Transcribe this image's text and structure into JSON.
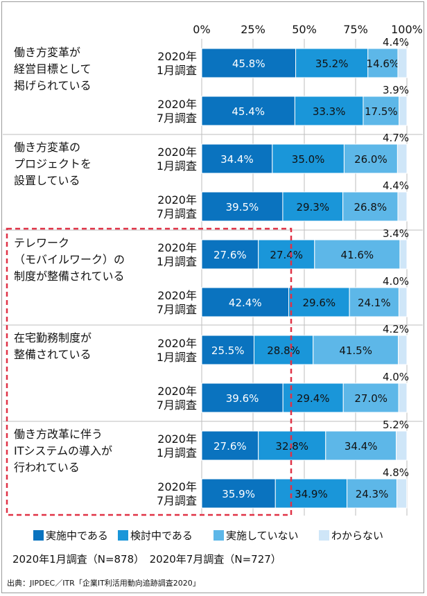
{
  "chart_data": {
    "type": "bar",
    "orientation": "horizontal",
    "stacked": "100%",
    "xlim": [
      0,
      100
    ],
    "x_ticks": [
      "0%",
      "25%",
      "50%",
      "75%",
      "100%"
    ],
    "grid": true,
    "legend_position": "bottom",
    "series": [
      {
        "name": "実施中である",
        "color": "#0a73bf",
        "label_color": "#ffffff"
      },
      {
        "name": "検討中である",
        "color": "#1a96d9",
        "label_color": "#111111"
      },
      {
        "name": "実施していない",
        "color": "#5db7e8",
        "label_color": "#111111"
      },
      {
        "name": "わからない",
        "color": "#cfe6f8",
        "label_color": "#111111"
      }
    ],
    "groups": [
      {
        "label_lines": [
          "働き方変革が",
          "経営目標として",
          "掲げられている"
        ],
        "rows": [
          {
            "survey": [
              "2020年",
              "1月調査"
            ],
            "values": [
              45.8,
              35.2,
              14.6,
              4.4
            ]
          },
          {
            "survey": [
              "2020年",
              "7月調査"
            ],
            "values": [
              45.4,
              33.3,
              17.5,
              3.9
            ]
          }
        ]
      },
      {
        "label_lines": [
          "働き方変革の",
          "プロジェクトを",
          "設置している"
        ],
        "rows": [
          {
            "survey": [
              "2020年",
              "1月調査"
            ],
            "values": [
              34.4,
              35.0,
              26.0,
              4.7
            ]
          },
          {
            "survey": [
              "2020年",
              "7月調査"
            ],
            "values": [
              39.5,
              29.3,
              26.8,
              4.4
            ]
          }
        ]
      },
      {
        "label_lines": [
          "テレワーク",
          "（モバイルワーク）の",
          "制度が整備されている"
        ],
        "rows": [
          {
            "survey": [
              "2020年",
              "1月調査"
            ],
            "values": [
              27.6,
              27.4,
              41.6,
              3.4
            ]
          },
          {
            "survey": [
              "2020年",
              "7月調査"
            ],
            "values": [
              42.4,
              29.6,
              24.1,
              4.0
            ]
          }
        ]
      },
      {
        "label_lines": [
          "在宅勤務制度が",
          "整備されている"
        ],
        "rows": [
          {
            "survey": [
              "2020年",
              "1月調査"
            ],
            "values": [
              25.5,
              28.8,
              41.5,
              4.2
            ]
          },
          {
            "survey": [
              "2020年",
              "7月調査"
            ],
            "values": [
              39.6,
              29.4,
              27.0,
              4.0
            ]
          }
        ]
      },
      {
        "label_lines": [
          "働き方改革に伴う",
          "ITシステムの導入が",
          "行われている"
        ],
        "rows": [
          {
            "survey": [
              "2020年",
              "1月調査"
            ],
            "values": [
              27.6,
              32.8,
              34.4,
              5.2
            ]
          },
          {
            "survey": [
              "2020年",
              "7月調査"
            ],
            "values": [
              35.9,
              34.9,
              24.3,
              4.8
            ]
          }
        ]
      }
    ],
    "highlight_groups": [
      2,
      3,
      4
    ]
  },
  "notes": {
    "sample_sizes": "2020年1月調査（N=878）　2020年7月調査（N=727）",
    "source": "出典：JIPDEC／ITR「企業IT利活用動向追跡調査2020」"
  }
}
